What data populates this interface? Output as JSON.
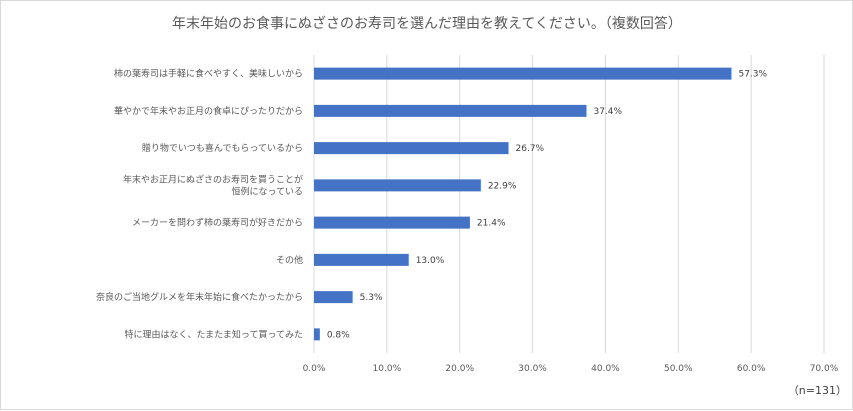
{
  "chart_data": {
    "type": "bar",
    "orientation": "horizontal",
    "title": "年末年始のお食事にぬざさのお寿司を選んだ理由を教えてください。（複数回答）",
    "categories": [
      [
        "柿の葉寿司は手軽に食べやすく、美味しいから"
      ],
      [
        "華やかで年末やお正月の食卓にぴったりだから"
      ],
      [
        "贈り物でいつも喜んでもらっているから"
      ],
      [
        "年末やお正月にぬざさのお寿司を買うことが",
        "恒例になっている"
      ],
      [
        "メーカーを問わず柿の葉寿司が好きだから"
      ],
      [
        "その他"
      ],
      [
        "奈良のご当地グルメを年末年始に食べたかったから"
      ],
      [
        "特に理由はなく、たまたま知って買ってみた"
      ]
    ],
    "values": [
      57.3,
      37.4,
      26.7,
      22.9,
      21.4,
      13.0,
      5.3,
      0.8
    ],
    "value_labels": [
      "57.3%",
      "37.4%",
      "26.7%",
      "22.9%",
      "21.4%",
      "13.0%",
      "5.3%",
      "0.8%"
    ],
    "xlim": [
      0,
      70
    ],
    "x_ticks": [
      "0.0%",
      "10.0%",
      "20.0%",
      "30.0%",
      "40.0%",
      "50.0%",
      "60.0%",
      "70.0%"
    ],
    "grid": true,
    "legend": "none",
    "bar_color": "#4472c4",
    "grid_color": "#d9d9d9",
    "note": "（n=131）"
  }
}
